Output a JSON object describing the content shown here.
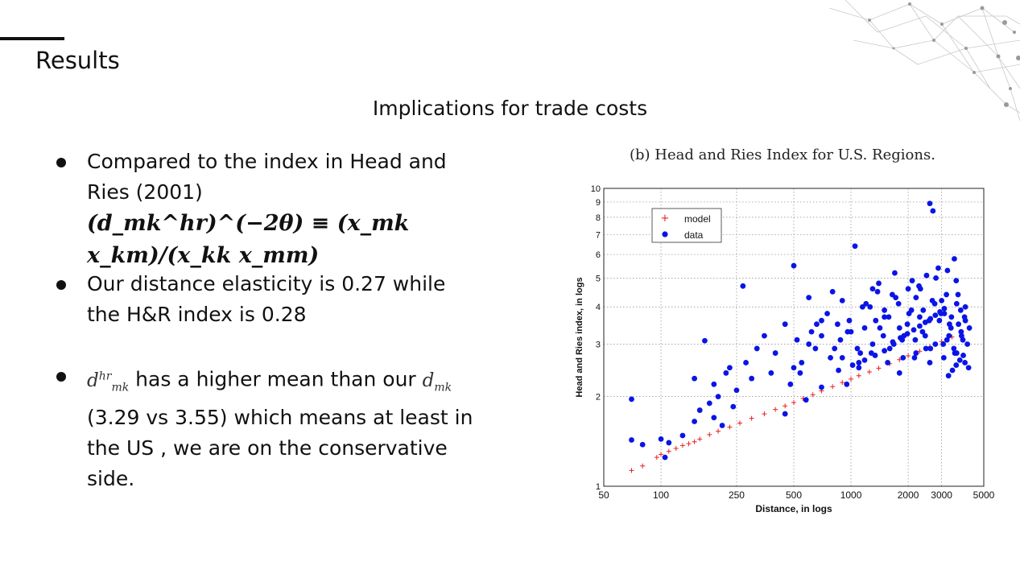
{
  "slide": {
    "title": "Results",
    "subtitle": "Implications for trade costs"
  },
  "bullets": {
    "b1_text": "Compared to the index in Head and Ries (2001)",
    "b1_formula": "(d_mk^hr)^(−2θ) ≡ (x_mk x_km)/(x_kk x_mm)",
    "b2_text": "Our distance elasticity is 0.27 while the H&R index is 0.28",
    "b3_text_a": "has a higher mean than our",
    "b3_text_b": "(3.29 vs 3.55) which means at least in the US , we are on the conservative side."
  },
  "chart_data": {
    "type": "scatter",
    "title": "(b) Head and Ries Index for U.S. Regions.",
    "xlabel": "Distance, in logs",
    "ylabel": "Head and Ries index, in logs",
    "x_scale": "log",
    "y_scale": "log",
    "xlim": [
      50,
      5000
    ],
    "ylim": [
      1,
      10
    ],
    "x_ticks": [
      "50",
      "100",
      "250",
      "500",
      "1000",
      "2000",
      "3000",
      "5000"
    ],
    "y_ticks": [
      "1",
      "2",
      "3",
      "4",
      "5",
      "6",
      "7",
      "8",
      "9",
      "10"
    ],
    "grid": true,
    "legend_position": "top-left",
    "colors": {
      "model": "#e8211e",
      "data": "#0a14e6"
    },
    "series": [
      {
        "name": "model",
        "marker": "+",
        "x": [
          70,
          80,
          95,
          100,
          110,
          120,
          130,
          140,
          150,
          160,
          180,
          200,
          230,
          260,
          300,
          350,
          400,
          450,
          500,
          560,
          630,
          700,
          800,
          900,
          1000,
          1100,
          1250,
          1400,
          1600,
          1800,
          2000,
          2300,
          2600,
          3000,
          3400,
          3800,
          4200
        ],
        "y": [
          1.13,
          1.17,
          1.25,
          1.28,
          1.31,
          1.34,
          1.37,
          1.39,
          1.41,
          1.44,
          1.49,
          1.53,
          1.58,
          1.63,
          1.69,
          1.75,
          1.81,
          1.86,
          1.91,
          1.97,
          2.03,
          2.09,
          2.16,
          2.23,
          2.29,
          2.35,
          2.42,
          2.49,
          2.58,
          2.66,
          2.74,
          2.84,
          2.94,
          3.06,
          3.17,
          3.28,
          3.38
        ]
      },
      {
        "name": "data",
        "marker": "o",
        "x": [
          70,
          70,
          80,
          100,
          105,
          110,
          130,
          150,
          150,
          160,
          170,
          180,
          190,
          190,
          200,
          210,
          220,
          230,
          240,
          250,
          270,
          280,
          300,
          320,
          350,
          380,
          400,
          450,
          480,
          500,
          520,
          550,
          600,
          650,
          700,
          800,
          900,
          1000,
          1050,
          1100,
          1200,
          1300,
          1400,
          1500,
          1600,
          1700,
          1800,
          2000,
          2200,
          2400,
          2500,
          2600,
          2700,
          3000,
          3200,
          3500,
          3800,
          4000,
          4200,
          600,
          750,
          850,
          950,
          1150,
          1350,
          1650,
          1900,
          2100,
          2300,
          2800,
          3300,
          3600,
          4100,
          500,
          700,
          900,
          1100,
          1300,
          1500,
          1800,
          2200,
          2600,
          3100,
          3600,
          4000,
          620,
          780,
          880,
          980,
          1080,
          1180,
          1280,
          1380,
          1480,
          1580,
          1680,
          1780,
          1880,
          1980,
          2080,
          2180,
          2280,
          2380,
          2480,
          2580,
          2680,
          2780,
          2880,
          2980,
          3080,
          3180,
          3280,
          3380,
          3480,
          3580,
          3680,
          3780,
          3880,
          3980,
          540,
          660,
          820,
          960,
          1120,
          1260,
          1420,
          1560,
          1720,
          1860,
          2020,
          2160,
          2320,
          2460,
          2620,
          2760,
          2920,
          3060,
          3220,
          3360,
          3520,
          3660,
          3820,
          3960,
          4160,
          450,
          580,
          700,
          860,
          1020,
          1180,
          1340,
          1500,
          1660,
          1820,
          1980,
          2140,
          2300,
          2460,
          2620,
          2780,
          2940,
          3100,
          3260,
          3420,
          3580,
          3740,
          3900
        ],
        "y": [
          1.96,
          1.43,
          1.38,
          1.44,
          1.25,
          1.4,
          1.48,
          1.65,
          2.3,
          1.8,
          3.08,
          1.9,
          1.7,
          2.2,
          2.0,
          1.6,
          2.4,
          2.5,
          1.85,
          2.1,
          4.7,
          2.6,
          2.3,
          2.9,
          3.2,
          2.4,
          2.8,
          3.5,
          2.2,
          5.5,
          3.1,
          2.6,
          4.3,
          2.9,
          3.6,
          4.5,
          2.7,
          3.3,
          6.4,
          2.5,
          4.1,
          3.0,
          4.8,
          3.7,
          2.9,
          5.2,
          3.4,
          4.6,
          2.8,
          3.9,
          5.1,
          8.9,
          8.4,
          4.2,
          3.1,
          5.8,
          3.3,
          3.6,
          3.4,
          3.0,
          3.8,
          3.5,
          2.2,
          4.0,
          3.6,
          4.4,
          3.2,
          4.9,
          3.7,
          5.0,
          3.5,
          4.1,
          3.0,
          2.5,
          3.2,
          4.2,
          2.6,
          4.6,
          3.9,
          2.4,
          4.3,
          2.6,
          3.8,
          2.8,
          4.0,
          3.3,
          2.7,
          3.1,
          3.6,
          2.9,
          3.4,
          2.8,
          4.5,
          3.2,
          3.7,
          3.0,
          4.1,
          2.7,
          3.5,
          3.9,
          3.1,
          4.7,
          3.3,
          2.9,
          3.6,
          4.2,
          3.0,
          5.4,
          3.8,
          2.7,
          4.4,
          3.2,
          3.7,
          2.9,
          4.9,
          3.5,
          3.9,
          3.1,
          2.6,
          2.4,
          3.5,
          2.9,
          3.3,
          2.8,
          4.0,
          3.4,
          2.6,
          4.3,
          3.1,
          3.8,
          2.7,
          4.6,
          3.2,
          2.9,
          4.1,
          3.6,
          3.0,
          5.3,
          3.4,
          2.8,
          4.4,
          3.2,
          3.7,
          2.5,
          1.75,
          1.95,
          2.15,
          2.45,
          2.55,
          2.65,
          2.75,
          2.85,
          3.05,
          3.15,
          3.25,
          3.35,
          3.45,
          3.55,
          3.65,
          3.75,
          3.85,
          3.95,
          2.35,
          2.45,
          2.55,
          2.65,
          2.75
        ]
      }
    ]
  }
}
